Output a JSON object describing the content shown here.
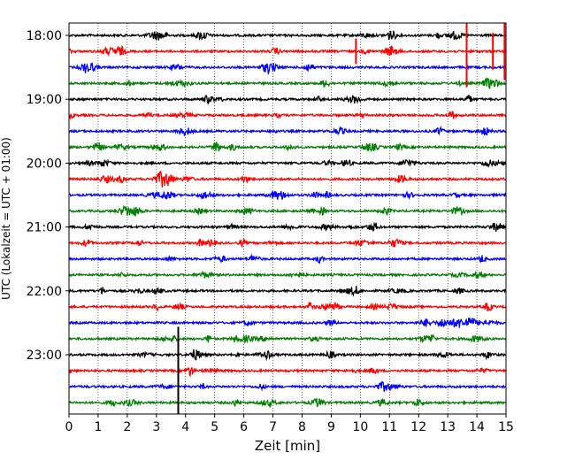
{
  "chart_data": {
    "type": "line",
    "title": "",
    "xlabel": "Zeit  [min]",
    "ylabel": "UTC (Lokalzeit = UTC + 01:00)",
    "xlim": [
      0,
      15
    ],
    "x_ticks": [
      "0",
      "1",
      "2",
      "3",
      "4",
      "5",
      "6",
      "7",
      "8",
      "9",
      "10",
      "11",
      "12",
      "13",
      "14",
      "15"
    ],
    "y_ticks": [
      {
        "label": "18:00",
        "row": 0
      },
      {
        "label": "19:00",
        "row": 4
      },
      {
        "label": "20:00",
        "row": 8
      },
      {
        "label": "21:00",
        "row": 12
      },
      {
        "label": "22:00",
        "row": 16
      },
      {
        "label": "23:00",
        "row": 20
      }
    ],
    "trace_interval_min": 15,
    "trace_start": "18:00",
    "trace_count": 24,
    "trace_colors": [
      "#000000",
      "#ff0000",
      "#0000ff",
      "#008000"
    ],
    "grid": "vertical dotted",
    "events": [
      {
        "row": 1,
        "minute": 9.85,
        "amplitude": 1.6,
        "color": "#ff0000"
      },
      {
        "row": 1,
        "minute": 13.65,
        "amplitude": 4.5,
        "color": "#ff0000"
      },
      {
        "row": 1,
        "minute": 14.55,
        "amplitude": 2.3,
        "color": "#ff0000"
      },
      {
        "row": 1,
        "minute": 14.95,
        "amplitude": 3.6,
        "color": "#ff0000"
      },
      {
        "row": 21,
        "minute": 3.75,
        "amplitude": 5.5,
        "color": "#000000"
      }
    ]
  }
}
